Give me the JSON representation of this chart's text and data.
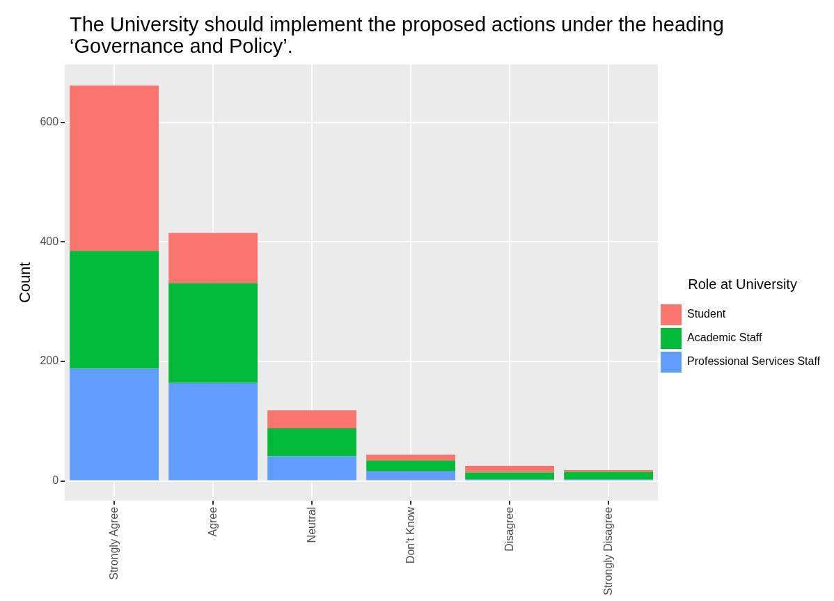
{
  "chart_data": {
    "type": "bar",
    "title": "The University should implement the proposed actions under the heading ‘Governance and Policy’.",
    "ylabel": "Count",
    "legend_title": "Role at University",
    "categories": [
      "Strongly Agree",
      "Agree",
      "Neutral",
      "Don't Know",
      "Disagree",
      "Strongly Disagree"
    ],
    "series": [
      {
        "name": "Professional Services Staff",
        "color": "#619cff",
        "values": [
          188,
          164,
          41,
          16,
          3,
          3
        ]
      },
      {
        "name": "Academic Staff",
        "color": "#00ba38",
        "values": [
          197,
          167,
          47,
          18,
          11,
          12
        ]
      },
      {
        "name": "Student",
        "color": "#f8766d",
        "values": [
          277,
          84,
          30,
          10,
          11,
          3
        ]
      }
    ],
    "stacked": true,
    "ylim": [
      -33,
      697
    ],
    "yticks": [
      0,
      200,
      400,
      600
    ],
    "grid": true,
    "legend": "right"
  }
}
